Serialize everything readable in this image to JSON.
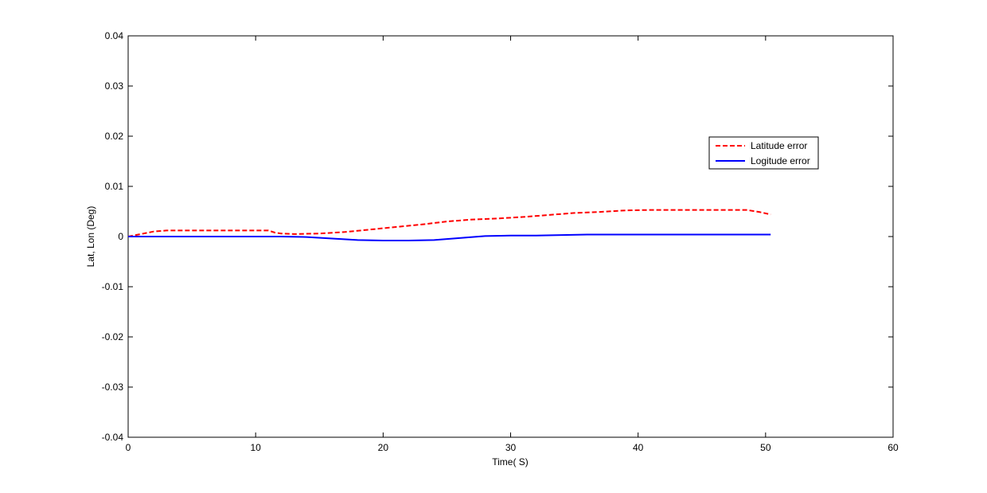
{
  "chart_data": {
    "type": "line",
    "title": "",
    "xlabel": "Time( S)",
    "ylabel": "Lat, Lon (Deg)",
    "xlim": [
      0,
      60
    ],
    "ylim": [
      -0.04,
      0.04
    ],
    "xticks": [
      0,
      10,
      20,
      30,
      40,
      50,
      60
    ],
    "yticks": [
      -0.04,
      -0.03,
      -0.02,
      -0.01,
      0,
      0.01,
      0.02,
      0.03,
      0.04
    ],
    "xtick_labels": [
      "0",
      "10",
      "20",
      "30",
      "40",
      "50",
      "60"
    ],
    "ytick_labels": [
      "-0.04",
      "-0.03",
      "-0.02",
      "-0.01",
      "0",
      "0.01",
      "0.02",
      "0.03",
      "0.04"
    ],
    "grid": false,
    "legend_position": "top-right",
    "series": [
      {
        "name": "Latitude error",
        "color": "#ff0000",
        "style": "dashed",
        "x": [
          0,
          1,
          2,
          3,
          5,
          8,
          10,
          11,
          11.5,
          12,
          13,
          15,
          17,
          19,
          21,
          23,
          25,
          27,
          29,
          31,
          33,
          35,
          37,
          39,
          41,
          43,
          45,
          47,
          48.5,
          49.5,
          50.4
        ],
        "y": [
          0,
          0.0005,
          0.001,
          0.0012,
          0.0012,
          0.0012,
          0.0012,
          0.0012,
          0.0008,
          0.0006,
          0.0005,
          0.0006,
          0.0009,
          0.0014,
          0.0019,
          0.0024,
          0.003,
          0.0034,
          0.0036,
          0.0039,
          0.0043,
          0.0047,
          0.0049,
          0.0052,
          0.0053,
          0.0053,
          0.0053,
          0.0053,
          0.0053,
          0.0049,
          0.0044
        ]
      },
      {
        "name": "Logitude error",
        "color": "#0000ff",
        "style": "solid",
        "x": [
          0,
          5,
          10,
          12,
          14,
          16,
          18,
          20,
          22,
          24,
          26,
          28,
          30,
          32,
          34,
          36,
          40,
          45,
          50,
          50.4
        ],
        "y": [
          0,
          0,
          0,
          0,
          -0.0001,
          -0.0004,
          -0.0007,
          -0.0008,
          -0.0008,
          -0.0007,
          -0.0003,
          0.0001,
          0.0002,
          0.0002,
          0.0003,
          0.0004,
          0.0004,
          0.0004,
          0.0004,
          0.0004
        ]
      }
    ]
  }
}
